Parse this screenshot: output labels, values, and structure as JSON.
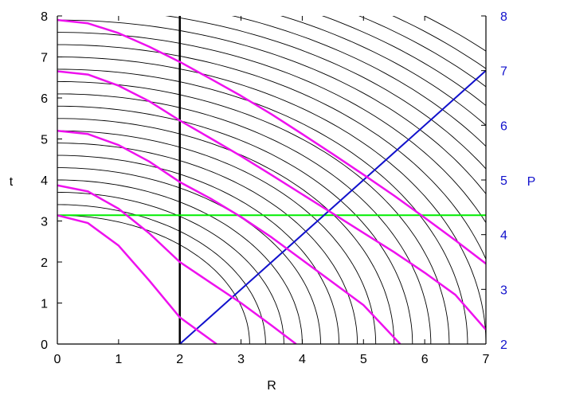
{
  "chart_data": {
    "type": "line",
    "xlabel": "R",
    "ylabel_left": "t",
    "ylabel_right": "P",
    "xlim": [
      0,
      7
    ],
    "ylim_left": [
      0,
      8
    ],
    "ylim_right": [
      2,
      8
    ],
    "x_ticks": [
      "0",
      "1",
      "2",
      "3",
      "4",
      "5",
      "6",
      "7"
    ],
    "y_left_ticks": [
      "0",
      "1",
      "2",
      "3",
      "4",
      "5",
      "6",
      "7",
      "8"
    ],
    "y_right_ticks": [
      "2",
      "3",
      "4",
      "5",
      "6",
      "7",
      "8"
    ],
    "grid": false,
    "colors": {
      "axis": "#000000",
      "circles": "#000000",
      "magenta_curves": "#ee11ee",
      "green_line": "#00ee00",
      "blue_line": "#1111cc",
      "right_axis": "#1111cc",
      "vertical_line": "#000000"
    },
    "thin_arcs_radii": [
      3.14,
      3.4,
      3.7,
      4.0,
      4.3,
      4.6,
      4.9,
      5.2,
      5.5,
      5.8,
      6.1,
      6.4,
      6.7,
      7.0,
      7.3,
      7.6,
      7.9,
      8.2,
      8.5,
      8.8,
      9.1,
      9.4,
      9.7,
      10.0
    ],
    "series": [
      {
        "kind": "vertical",
        "x": 2,
        "y_range": [
          0,
          8
        ]
      },
      {
        "kind": "horizontal",
        "y": 3.14,
        "x_range": [
          0,
          7
        ]
      },
      {
        "kind": "line_right_axis",
        "x": [
          2,
          7
        ],
        "y": [
          2,
          7
        ]
      },
      {
        "kind": "magenta",
        "x": [
          0,
          0.5,
          1.0,
          1.5,
          2.0,
          2.6
        ],
        "y": [
          3.14,
          2.95,
          2.4,
          1.55,
          0.65,
          0
        ]
      },
      {
        "kind": "magenta",
        "x": [
          0,
          0.5,
          1.0,
          1.5,
          2.0,
          2.5,
          3.0,
          3.5,
          3.9
        ],
        "y": [
          3.87,
          3.72,
          3.3,
          2.7,
          2.0,
          1.5,
          1.0,
          0.45,
          0
        ]
      },
      {
        "kind": "magenta",
        "x": [
          0,
          0.5,
          1.0,
          1.5,
          2.0,
          2.5,
          3.0,
          3.5,
          4.0,
          4.5,
          5.0,
          5.6
        ],
        "y": [
          5.2,
          5.12,
          4.85,
          4.45,
          3.95,
          3.55,
          3.1,
          2.6,
          2.05,
          1.5,
          0.95,
          0
        ]
      },
      {
        "kind": "magenta",
        "x": [
          0,
          0.5,
          1.0,
          1.5,
          2.0,
          2.5,
          3.0,
          3.5,
          4.0,
          4.5,
          5.0,
          5.5,
          6.0,
          6.5,
          7.0
        ],
        "y": [
          6.65,
          6.57,
          6.3,
          5.92,
          5.45,
          5.02,
          4.58,
          4.12,
          3.65,
          3.18,
          2.71,
          2.24,
          1.74,
          1.2,
          0.35
        ]
      },
      {
        "kind": "magenta",
        "x": [
          0,
          0.5,
          1.0,
          1.5,
          2.0,
          2.5,
          3.0,
          3.5,
          4.0,
          4.5,
          5.0,
          5.5,
          6.0,
          6.5,
          7.0
        ],
        "y": [
          7.9,
          7.82,
          7.58,
          7.25,
          6.88,
          6.47,
          6.05,
          5.6,
          5.12,
          4.63,
          4.13,
          3.62,
          3.08,
          2.53,
          1.96
        ]
      }
    ]
  }
}
